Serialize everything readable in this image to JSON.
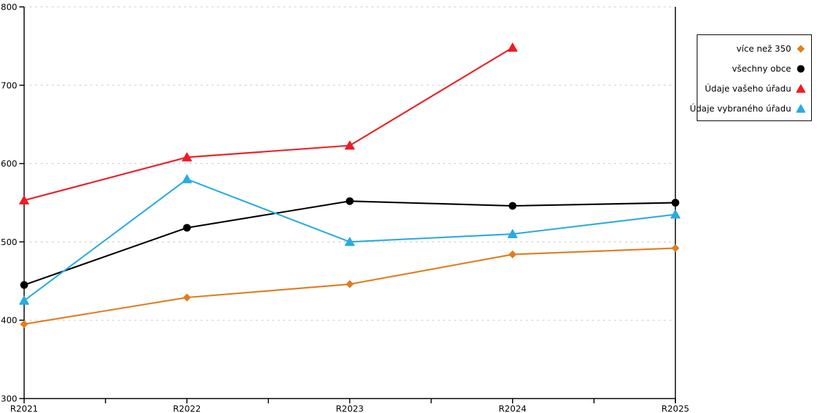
{
  "chart_data": {
    "type": "line",
    "title": "",
    "xlabel": "",
    "ylabel": "",
    "categories": [
      "R2021",
      "R2022",
      "R2023",
      "R2024",
      "R2025"
    ],
    "series": [
      {
        "name": "více než 350",
        "marker": "diamond",
        "color": "#DE7E20",
        "values": [
          395,
          429,
          446,
          484,
          492
        ]
      },
      {
        "name": "všechny obce",
        "marker": "circle",
        "color": "#000000",
        "values": [
          445,
          518,
          552,
          546,
          550
        ]
      },
      {
        "name": "Údaje vašeho úřadu",
        "marker": "triangle",
        "color": "#EE1C23",
        "values": [
          553,
          608,
          623,
          748,
          null
        ]
      },
      {
        "name": "Údaje vybraného úřadu",
        "marker": "triangle",
        "color": "#29ABE2",
        "values": [
          425,
          580,
          500,
          510,
          535
        ]
      }
    ],
    "ylim": [
      300,
      800
    ],
    "yticks": [
      300,
      400,
      500,
      600,
      700,
      800
    ],
    "grid": "horizontal-dashed",
    "grid_color": "#C8C8C8",
    "axis_color": "#000000",
    "legend_position": "top-right"
  }
}
